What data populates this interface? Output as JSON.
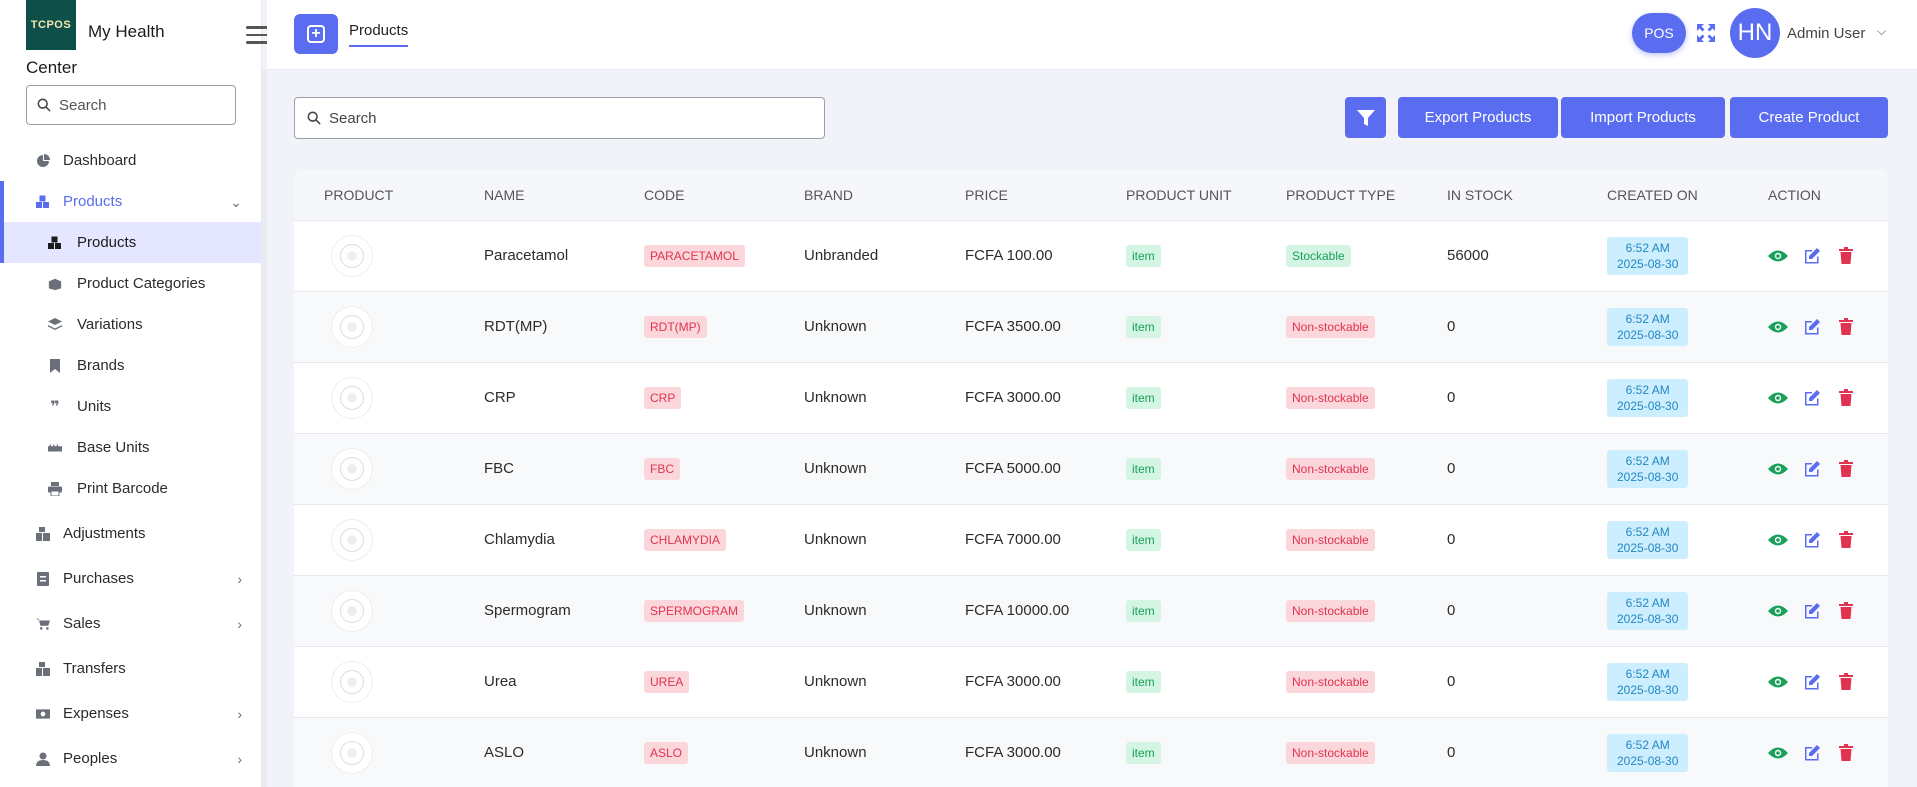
{
  "app": {
    "logo_text": "TCPOS",
    "name": "My Health Center"
  },
  "sidebar": {
    "search_placeholder": "Search",
    "items": [
      {
        "label": "Dashboard"
      },
      {
        "label": "Products"
      },
      {
        "label": "Adjustments"
      },
      {
        "label": "Purchases"
      },
      {
        "label": "Sales"
      },
      {
        "label": "Transfers"
      },
      {
        "label": "Expenses"
      },
      {
        "label": "Peoples"
      }
    ],
    "sub_items": [
      {
        "label": "Products"
      },
      {
        "label": "Product Categories"
      },
      {
        "label": "Variations"
      },
      {
        "label": "Brands"
      },
      {
        "label": "Units"
      },
      {
        "label": "Base Units"
      },
      {
        "label": "Print Barcode"
      }
    ]
  },
  "header": {
    "tab_label": "Products",
    "pos_label": "POS",
    "avatar_initials": "HN",
    "user_name": "Admin User"
  },
  "toolbar": {
    "search_placeholder": "Search",
    "export_label": "Export Products",
    "import_label": "Import Products",
    "create_label": "Create Product"
  },
  "table": {
    "columns": [
      "PRODUCT",
      "NAME",
      "CODE",
      "BRAND",
      "PRICE",
      "PRODUCT UNIT",
      "PRODUCT TYPE",
      "IN STOCK",
      "CREATED ON",
      "ACTION"
    ],
    "rows": [
      {
        "name": "Paracetamol",
        "code": "PARACETAMOL",
        "brand": "Unbranded",
        "price": "FCFA 100.00",
        "unit": "item",
        "type": "Stockable",
        "stock": "56000",
        "time": "6:52 AM",
        "date": "2025-08-30"
      },
      {
        "name": "RDT(MP)",
        "code": "RDT(MP)",
        "brand": "Unknown",
        "price": "FCFA 3500.00",
        "unit": "item",
        "type": "Non-stockable",
        "stock": "0",
        "time": "6:52 AM",
        "date": "2025-08-30"
      },
      {
        "name": "CRP",
        "code": "CRP",
        "brand": "Unknown",
        "price": "FCFA 3000.00",
        "unit": "item",
        "type": "Non-stockable",
        "stock": "0",
        "time": "6:52 AM",
        "date": "2025-08-30"
      },
      {
        "name": "FBC",
        "code": "FBC",
        "brand": "Unknown",
        "price": "FCFA 5000.00",
        "unit": "item",
        "type": "Non-stockable",
        "stock": "0",
        "time": "6:52 AM",
        "date": "2025-08-30"
      },
      {
        "name": "Chlamydia",
        "code": "CHLAMYDIA",
        "brand": "Unknown",
        "price": "FCFA 7000.00",
        "unit": "item",
        "type": "Non-stockable",
        "stock": "0",
        "time": "6:52 AM",
        "date": "2025-08-30"
      },
      {
        "name": "Spermogram",
        "code": "SPERMOGRAM",
        "brand": "Unknown",
        "price": "FCFA 10000.00",
        "unit": "item",
        "type": "Non-stockable",
        "stock": "0",
        "time": "6:52 AM",
        "date": "2025-08-30"
      },
      {
        "name": "Urea",
        "code": "UREA",
        "brand": "Unknown",
        "price": "FCFA 3000.00",
        "unit": "item",
        "type": "Non-stockable",
        "stock": "0",
        "time": "6:52 AM",
        "date": "2025-08-30"
      },
      {
        "name": "ASLO",
        "code": "ASLO",
        "brand": "Unknown",
        "price": "FCFA 3000.00",
        "unit": "item",
        "type": "Non-stockable",
        "stock": "0",
        "time": "6:52 AM",
        "date": "2025-08-30"
      }
    ]
  },
  "colors": {
    "accent": "#5a6cf0",
    "success": "#19a05a",
    "danger": "#e0334f",
    "info": "#2388c2"
  }
}
